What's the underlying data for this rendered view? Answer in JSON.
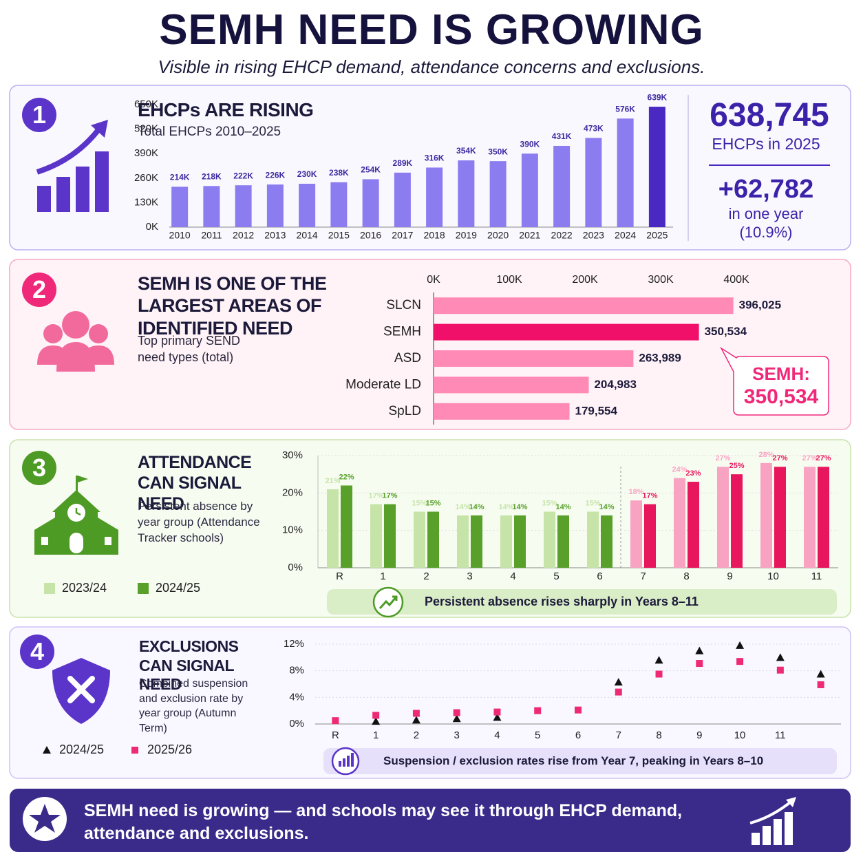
{
  "header": {
    "title": "SEMH NEED IS GROWING",
    "subtitle": "Visible in rising EHCP demand, attendance concerns and exclusions."
  },
  "panels": [
    {
      "number": "1",
      "heading": "EHCPs ARE RISING",
      "caption": "Total EHCPs 2010–2025",
      "stat": "638,745",
      "stat_label": "EHCPs in 2025",
      "change": "+62,782",
      "change_label": "in one year",
      "change_pct": "(10.9%)"
    },
    {
      "number": "2",
      "heading": "SEMH IS ONE OF THE LARGEST AREAS OF IDENTIFIED NEED",
      "caption": "Top primary SEND need types (total)",
      "callout_label": "SEMH:",
      "callout_value": "350,534"
    },
    {
      "number": "3",
      "heading": "ATTENDANCE CAN SIGNAL NEED",
      "caption": "Persistent absence by year group (Attendance Tracker schools)",
      "note": "Persistent absence rises sharply in Years 8–11"
    },
    {
      "number": "4",
      "heading": "EXCLUSIONS CAN SIGNAL NEED",
      "caption": "Combined suspension and exclusion rate by year group (Autumn Term)",
      "note": "Suspension / exclusion rates rise from Year 7, peaking in Years 8–10"
    }
  ],
  "footer": {
    "text": "SEMH need is growing — and schools may see it through EHCP demand, attendance and exclusions."
  },
  "chart_data": [
    {
      "type": "bar",
      "categories": [
        "2010",
        "2011",
        "2012",
        "2013",
        "2014",
        "2015",
        "2016",
        "2017",
        "2018",
        "2019",
        "2020",
        "2021",
        "2022",
        "2023",
        "2024",
        "2025"
      ],
      "values": [
        214000,
        218000,
        222000,
        226000,
        230000,
        238000,
        254000,
        289000,
        316000,
        354000,
        350000,
        390000,
        431000,
        473000,
        575963,
        638745
      ],
      "value_labels": [
        "214K",
        "218K",
        "222K",
        "226K",
        "230K",
        "238K",
        "254K",
        "289K",
        "316K",
        "354K",
        "350K",
        "390K",
        "431K",
        "473K",
        "576K",
        "639K"
      ],
      "colors": [
        "#8b7cf0",
        "#8b7cf0",
        "#8b7cf0",
        "#8b7cf0",
        "#8b7cf0",
        "#8b7cf0",
        "#8b7cf0",
        "#8b7cf0",
        "#8b7cf0",
        "#8b7cf0",
        "#8b7cf0",
        "#8b7cf0",
        "#8b7cf0",
        "#8b7cf0",
        "#8b7cf0",
        "#4a28c2"
      ],
      "ylim": [
        0,
        650000
      ],
      "yticks": [
        {
          "value": 0,
          "label": "0K"
        },
        {
          "value": 130000,
          "label": "130K"
        },
        {
          "value": 260000,
          "label": "260K"
        },
        {
          "value": 390000,
          "label": "390K"
        },
        {
          "value": 520000,
          "label": "520K"
        },
        {
          "value": 650000,
          "label": "650K"
        }
      ],
      "grid": false
    },
    {
      "type": "hbar",
      "categories": [
        "SLCN",
        "SEMH",
        "ASD",
        "Moderate LD",
        "SpLD"
      ],
      "values": [
        396025,
        350534,
        263989,
        204983,
        179554
      ],
      "value_labels": [
        "396,025",
        "350,534",
        "263,989",
        "204,983",
        "179,554"
      ],
      "colors": [
        "#ff8ab5",
        "#f0106a",
        "#ff8ab5",
        "#ff8ab5",
        "#ff8ab5"
      ],
      "xlim": [
        0,
        400000
      ],
      "xticks": [
        {
          "value": 0,
          "label": "0K"
        },
        {
          "value": 100000,
          "label": "100K"
        },
        {
          "value": 200000,
          "label": "200K"
        },
        {
          "value": 300000,
          "label": "300K"
        },
        {
          "value": 400000,
          "label": "400K"
        }
      ],
      "grid": false
    },
    {
      "type": "grouped_bar",
      "categories": [
        "R",
        "1",
        "2",
        "3",
        "4",
        "5",
        "6",
        "7",
        "8",
        "9",
        "10",
        "11"
      ],
      "series": [
        {
          "name": "2023/24",
          "color": "#c6e4a8",
          "colors": [
            "#c6e4a8",
            "#c6e4a8",
            "#c6e4a8",
            "#c6e4a8",
            "#c6e4a8",
            "#c6e4a8",
            "#c6e4a8",
            "#f9a3c3",
            "#f9a3c3",
            "#f9a3c3",
            "#f9a3c3",
            "#f9a3c3"
          ],
          "values": [
            21,
            17,
            15,
            14,
            14,
            15,
            15,
            18,
            24,
            27,
            28,
            27
          ],
          "value_labels": [
            "21%",
            "17%",
            "15%",
            "14%",
            "14%",
            "15%",
            "15%",
            "18%",
            "24%",
            "27%",
            "28%",
            "27%"
          ]
        },
        {
          "name": "2024/25",
          "color": "#58a02a",
          "colors": [
            "#58a02a",
            "#58a02a",
            "#58a02a",
            "#58a02a",
            "#58a02a",
            "#58a02a",
            "#58a02a",
            "#e8175d",
            "#e8175d",
            "#e8175d",
            "#e8175d",
            "#e8175d"
          ],
          "values": [
            22,
            17,
            15,
            14,
            14,
            14,
            14,
            17,
            23,
            25,
            27,
            27
          ],
          "value_labels": [
            "22%",
            "17%",
            "15%",
            "14%",
            "14%",
            "14%",
            "14%",
            "17%",
            "23%",
            "25%",
            "27%",
            "27%"
          ]
        }
      ],
      "ylim": [
        0,
        30
      ],
      "yticks": [
        {
          "value": 0,
          "label": "0%"
        },
        {
          "value": 10,
          "label": "10%"
        },
        {
          "value": 20,
          "label": "20%"
        },
        {
          "value": 30,
          "label": "30%"
        }
      ],
      "grid": true
    },
    {
      "type": "dot",
      "categories": [
        "R",
        "1",
        "2",
        "3",
        "4",
        "5",
        "6",
        "7",
        "8",
        "9",
        "10",
        "11",
        null
      ],
      "series": [
        {
          "name": "2024/25",
          "color": "#111111",
          "marker": "triangle",
          "values": [
            null,
            0.4,
            0.6,
            0.8,
            1.0,
            null,
            null,
            6.3,
            9.6,
            11,
            11.8,
            10,
            7.5
          ]
        },
        {
          "name": "2025/26",
          "color": "#ef2a74",
          "marker": "square",
          "values": [
            0.5,
            1.3,
            1.6,
            1.7,
            1.8,
            2,
            2.1,
            4.8,
            7.5,
            9.1,
            9.4,
            8.1,
            5.9
          ]
        }
      ],
      "ylim": [
        0,
        12
      ],
      "yticks": [
        {
          "value": 0,
          "label": "0%"
        },
        {
          "value": 4,
          "label": "4%"
        },
        {
          "value": 8,
          "label": "8%"
        },
        {
          "value": 12,
          "label": "12%"
        }
      ],
      "grid": true
    }
  ]
}
